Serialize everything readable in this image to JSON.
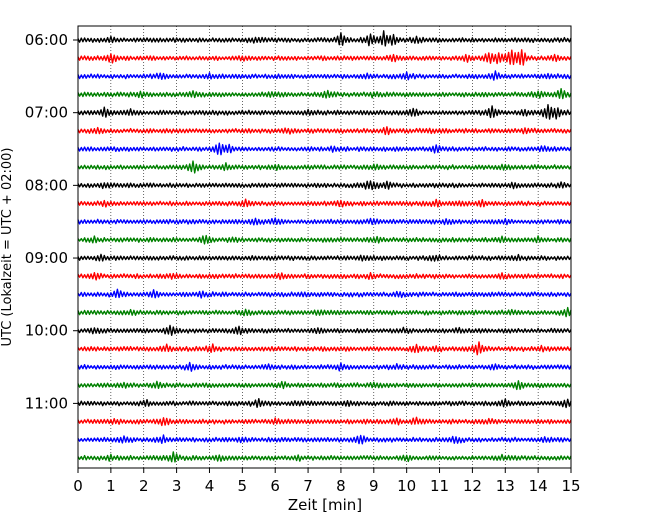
{
  "chart_data": {
    "type": "line",
    "title": "",
    "xlabel": "Zeit  [min]",
    "ylabel": "UTC (Lokalzeit = UTC + 02:00)",
    "xlim": [
      0,
      15
    ],
    "x_ticks": [
      "0",
      "1",
      "2",
      "3",
      "4",
      "5",
      "6",
      "7",
      "8",
      "9",
      "10",
      "11",
      "12",
      "13",
      "14",
      "15"
    ],
    "y_tick_labels": [
      "06:00",
      "07:00",
      "08:00",
      "09:00",
      "10:00",
      "11:00"
    ],
    "grid": "vertical-dotted",
    "trace_start_utc": "06:00",
    "trace_interval_min": 15,
    "color_cycle": [
      "#000000",
      "#ff0000",
      "#0000ff",
      "#008000"
    ],
    "traces": [
      {
        "start": "06:00",
        "color": "#000000",
        "events": [
          [
            8.0,
            0.6
          ],
          [
            8.9,
            0.7
          ],
          [
            9.3,
            0.8
          ],
          [
            9.6,
            0.5
          ],
          [
            10.3,
            0.3
          ],
          [
            1.0,
            0.2
          ],
          [
            5.4,
            0.2
          ]
        ]
      },
      {
        "start": "06:15",
        "color": "#ff0000",
        "events": [
          [
            1.0,
            0.5
          ],
          [
            5.0,
            0.2
          ],
          [
            9.6,
            0.3
          ],
          [
            11.8,
            0.3
          ],
          [
            12.5,
            0.6
          ],
          [
            12.8,
            0.5
          ],
          [
            13.2,
            1.0
          ],
          [
            13.5,
            0.9
          ],
          [
            14.5,
            0.3
          ]
        ]
      },
      {
        "start": "06:30",
        "color": "#0000ff",
        "events": [
          [
            2.5,
            0.2
          ],
          [
            4.0,
            0.2
          ],
          [
            8.8,
            0.2
          ],
          [
            10.0,
            0.3
          ],
          [
            12.7,
            0.4
          ],
          [
            14.3,
            0.2
          ]
        ]
      },
      {
        "start": "06:45",
        "color": "#008000",
        "events": [
          [
            1.9,
            0.3
          ],
          [
            3.5,
            0.3
          ],
          [
            5.9,
            0.2
          ],
          [
            7.6,
            0.3
          ],
          [
            9.0,
            0.2
          ],
          [
            14.0,
            0.3
          ],
          [
            14.7,
            0.5
          ]
        ]
      },
      {
        "start": "07:00",
        "color": "#000000",
        "events": [
          [
            0.8,
            0.4
          ],
          [
            1.6,
            0.3
          ],
          [
            7.0,
            0.2
          ],
          [
            10.2,
            0.4
          ],
          [
            12.6,
            0.6
          ],
          [
            13.6,
            0.3
          ],
          [
            14.3,
            0.8
          ],
          [
            14.6,
            0.6
          ]
        ]
      },
      {
        "start": "07:15",
        "color": "#ff0000",
        "events": [
          [
            0.6,
            0.2
          ],
          [
            6.4,
            0.2
          ],
          [
            9.4,
            0.3
          ],
          [
            10.7,
            0.2
          ],
          [
            13.6,
            0.2
          ]
        ]
      },
      {
        "start": "07:30",
        "color": "#0000ff",
        "events": [
          [
            4.3,
            0.7
          ],
          [
            4.6,
            0.3
          ],
          [
            7.8,
            0.2
          ],
          [
            10.9,
            0.3
          ],
          [
            14.2,
            0.2
          ]
        ]
      },
      {
        "start": "07:45",
        "color": "#008000",
        "events": [
          [
            3.5,
            0.7
          ],
          [
            4.5,
            0.3
          ],
          [
            6.0,
            0.2
          ],
          [
            9.1,
            0.2
          ],
          [
            13.0,
            0.2
          ]
        ]
      },
      {
        "start": "08:00",
        "color": "#000000",
        "events": [
          [
            0.8,
            0.2
          ],
          [
            8.8,
            0.4
          ],
          [
            9.0,
            0.3
          ],
          [
            9.4,
            0.3
          ],
          [
            13.2,
            0.2
          ],
          [
            14.7,
            0.2
          ]
        ]
      },
      {
        "start": "08:15",
        "color": "#ff0000",
        "events": [
          [
            0.8,
            0.2
          ],
          [
            5.1,
            0.3
          ],
          [
            8.0,
            0.2
          ],
          [
            10.9,
            0.3
          ],
          [
            11.6,
            0.2
          ],
          [
            12.3,
            0.3
          ]
        ]
      },
      {
        "start": "08:30",
        "color": "#0000ff",
        "events": [
          [
            5.4,
            0.3
          ],
          [
            6.0,
            0.3
          ],
          [
            8.9,
            0.2
          ],
          [
            11.2,
            0.2
          ],
          [
            13.0,
            0.2
          ]
        ]
      },
      {
        "start": "08:45",
        "color": "#008000",
        "events": [
          [
            0.5,
            0.2
          ],
          [
            3.9,
            0.5
          ],
          [
            4.7,
            0.2
          ],
          [
            9.1,
            0.3
          ],
          [
            12.9,
            0.3
          ],
          [
            14.0,
            0.2
          ]
        ]
      },
      {
        "start": "09:00",
        "color": "#000000",
        "events": [
          [
            0.7,
            0.2
          ],
          [
            8.7,
            0.2
          ],
          [
            10.9,
            0.2
          ],
          [
            13.4,
            0.2
          ]
        ]
      },
      {
        "start": "09:15",
        "color": "#ff0000",
        "events": [
          [
            0.5,
            0.4
          ],
          [
            2.9,
            0.2
          ],
          [
            6.2,
            0.2
          ],
          [
            8.9,
            0.2
          ],
          [
            12.9,
            0.2
          ]
        ]
      },
      {
        "start": "09:30",
        "color": "#0000ff",
        "events": [
          [
            1.2,
            0.4
          ],
          [
            2.3,
            0.3
          ],
          [
            3.8,
            0.3
          ],
          [
            6.8,
            0.2
          ],
          [
            9.8,
            0.2
          ]
        ]
      },
      {
        "start": "09:45",
        "color": "#008000",
        "events": [
          [
            1.7,
            0.2
          ],
          [
            5.1,
            0.2
          ],
          [
            7.4,
            0.2
          ],
          [
            13.2,
            0.2
          ],
          [
            14.9,
            0.4
          ]
        ]
      },
      {
        "start": "10:00",
        "color": "#000000",
        "events": [
          [
            0.5,
            0.2
          ],
          [
            2.8,
            0.5
          ],
          [
            4.9,
            0.4
          ],
          [
            7.3,
            0.2
          ],
          [
            9.9,
            0.2
          ],
          [
            11.6,
            0.2
          ]
        ]
      },
      {
        "start": "10:15",
        "color": "#ff0000",
        "events": [
          [
            2.7,
            0.3
          ],
          [
            4.1,
            0.4
          ],
          [
            10.3,
            0.4
          ],
          [
            10.9,
            0.3
          ],
          [
            12.2,
            0.7
          ],
          [
            14.1,
            0.2
          ]
        ]
      },
      {
        "start": "10:30",
        "color": "#0000ff",
        "events": [
          [
            3.4,
            0.4
          ],
          [
            5.8,
            0.2
          ],
          [
            8.0,
            0.3
          ],
          [
            9.7,
            0.2
          ],
          [
            12.7,
            0.2
          ]
        ]
      },
      {
        "start": "10:45",
        "color": "#008000",
        "events": [
          [
            1.4,
            0.2
          ],
          [
            2.4,
            0.3
          ],
          [
            6.2,
            0.3
          ],
          [
            9.0,
            0.2
          ],
          [
            13.4,
            0.4
          ]
        ]
      },
      {
        "start": "11:00",
        "color": "#000000",
        "events": [
          [
            2.1,
            0.2
          ],
          [
            5.5,
            0.4
          ],
          [
            6.8,
            0.2
          ],
          [
            8.2,
            0.2
          ],
          [
            13.0,
            0.3
          ],
          [
            14.9,
            0.5
          ]
        ]
      },
      {
        "start": "11:15",
        "color": "#ff0000",
        "events": [
          [
            1.1,
            0.2
          ],
          [
            2.6,
            0.4
          ],
          [
            6.0,
            0.2
          ],
          [
            9.7,
            0.3
          ],
          [
            10.3,
            0.3
          ],
          [
            12.5,
            0.2
          ]
        ]
      },
      {
        "start": "11:30",
        "color": "#0000ff",
        "events": [
          [
            1.4,
            0.3
          ],
          [
            2.6,
            0.3
          ],
          [
            5.0,
            0.2
          ],
          [
            8.6,
            0.5
          ],
          [
            11.5,
            0.3
          ],
          [
            14.2,
            0.2
          ]
        ]
      },
      {
        "start": "11:45",
        "color": "#008000",
        "events": [
          [
            1.0,
            0.2
          ],
          [
            2.9,
            0.5
          ],
          [
            4.3,
            0.2
          ],
          [
            6.7,
            0.2
          ],
          [
            10.0,
            0.2
          ],
          [
            12.9,
            0.2
          ]
        ]
      }
    ]
  }
}
